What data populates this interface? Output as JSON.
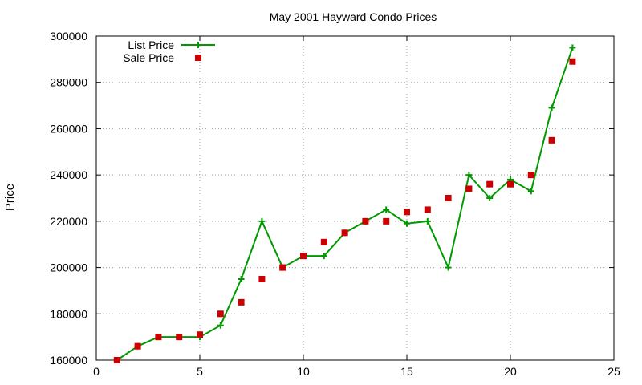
{
  "chart_data": {
    "type": "line",
    "title": "May 2001 Hayward Condo Prices",
    "xlabel": "",
    "ylabel": "Price",
    "xlim": [
      0,
      25
    ],
    "ylim": [
      160000,
      300000
    ],
    "xticks": [
      0,
      5,
      10,
      15,
      20,
      25
    ],
    "yticks": [
      160000,
      180000,
      200000,
      220000,
      240000,
      260000,
      280000,
      300000
    ],
    "grid": true,
    "legend_position": "top-left",
    "series": [
      {
        "name": "List Price",
        "style": "line-with-plus-markers",
        "color": "#009900",
        "x": [
          1,
          2,
          3,
          4,
          5,
          6,
          7,
          8,
          9,
          10,
          11,
          12,
          13,
          14,
          15,
          16,
          17,
          18,
          19,
          20,
          21,
          22,
          23
        ],
        "values": [
          160000,
          166000,
          170000,
          170000,
          170000,
          175000,
          195000,
          220000,
          200000,
          205000,
          205000,
          215000,
          220000,
          225000,
          219000,
          220000,
          200000,
          240000,
          230000,
          238000,
          233000,
          269000,
          295000
        ]
      },
      {
        "name": "Sale Price",
        "style": "square-points",
        "color": "#cc0000",
        "x": [
          1,
          2,
          3,
          4,
          5,
          6,
          7,
          8,
          9,
          10,
          11,
          12,
          13,
          14,
          15,
          16,
          17,
          18,
          19,
          20,
          21,
          22,
          23
        ],
        "values": [
          160000,
          166000,
          170000,
          170000,
          171000,
          180000,
          185000,
          195000,
          200000,
          205000,
          211000,
          215000,
          220000,
          220000,
          224000,
          225000,
          230000,
          234000,
          236000,
          236000,
          240000,
          255000,
          289000
        ]
      }
    ]
  }
}
